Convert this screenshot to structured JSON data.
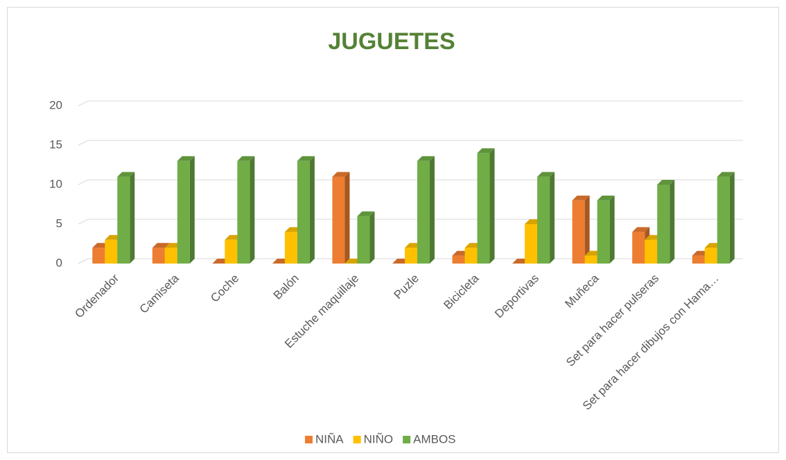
{
  "chart_data": {
    "type": "bar3d",
    "title": "JUGUETES",
    "categories": [
      "Ordenador",
      "Camiseta",
      "Coche",
      "Balón",
      "Estuche maquillaje",
      "Puzle",
      "Bicicleta",
      "Deportivas",
      "Muñeca",
      "Set para hacer pulseras",
      "Set para hacer dibujos con Hama…"
    ],
    "series": [
      {
        "name": "NIÑA",
        "color": "#ed7d31",
        "values": [
          2,
          2,
          0,
          0,
          11,
          0,
          1,
          0,
          8,
          4,
          1
        ]
      },
      {
        "name": "NIÑO",
        "color": "#ffc000",
        "values": [
          3,
          2,
          3,
          4,
          0,
          2,
          2,
          5,
          1,
          3,
          2
        ]
      },
      {
        "name": "AMBOS",
        "color": "#70ad47",
        "values": [
          11,
          13,
          13,
          13,
          6,
          13,
          14,
          11,
          8,
          10,
          11
        ]
      }
    ],
    "ylim": [
      0,
      20
    ],
    "yticks": [
      0,
      5,
      10,
      15,
      20
    ],
    "grid": true,
    "legend": "bottom"
  }
}
